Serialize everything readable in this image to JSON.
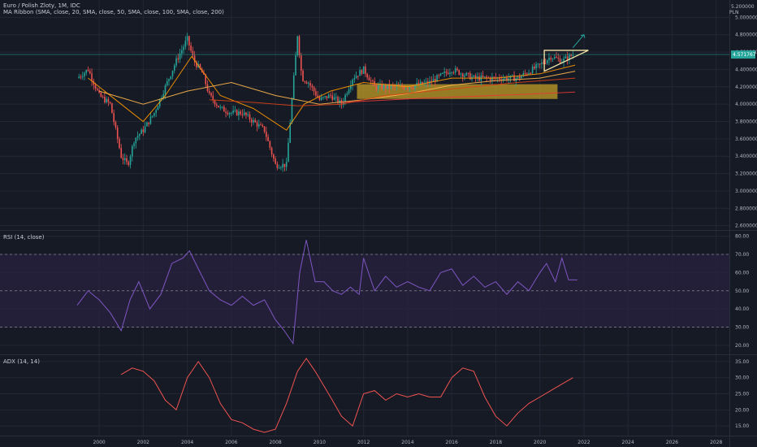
{
  "colors": {
    "background": "#161a25",
    "grid": "#232735",
    "separator": "#2a2e39",
    "up": "#26a69a",
    "down": "#ef5350",
    "ma20": "#ff9800",
    "ma50": "#ffb74d",
    "ma100": "#d84315",
    "ma200": "#e53935",
    "rsi_line": "#7e57c2",
    "rsi_band": "#2a2240",
    "adx_line": "#ef5350",
    "price_line": "#26a69a",
    "box_fill": "#c9a227",
    "pattern": "#f6e7a6",
    "arrow": "#26a69a"
  },
  "header": {
    "title": "Euro / Polish Zloty, 1M, IDC",
    "indicator": "MA Ribbon (SMA, close, 20, SMA, close, 50, SMA, close, 100, SMA, close, 200)"
  },
  "x_axis": {
    "ticks": [
      {
        "year": 2000,
        "label": "2000"
      },
      {
        "year": 2002,
        "label": "2002"
      },
      {
        "year": 2004,
        "label": "2004"
      },
      {
        "year": 2006,
        "label": "2006"
      },
      {
        "year": 2008,
        "label": "2008"
      },
      {
        "year": 2010,
        "label": "2010"
      },
      {
        "year": 2012,
        "label": "2012"
      },
      {
        "year": 2014,
        "label": "2014"
      },
      {
        "year": 2016,
        "label": "2016"
      },
      {
        "year": 2018,
        "label": "2018"
      },
      {
        "year": 2020,
        "label": "2020"
      },
      {
        "year": 2022,
        "label": "2022"
      },
      {
        "year": 2024,
        "label": "2024"
      },
      {
        "year": 2026,
        "label": "2026"
      },
      {
        "year": 2028,
        "label": "2028"
      }
    ],
    "range": [
      1995.5,
      2028.6
    ]
  },
  "price_axis": {
    "unit": "PLN",
    "ticks": [
      {
        "v": 5.0,
        "label": "5.000000"
      },
      {
        "v": 4.8,
        "label": "4.800000"
      },
      {
        "v": 4.6,
        "label": "4.600000"
      },
      {
        "v": 4.4,
        "label": "4.400000"
      },
      {
        "v": 4.2,
        "label": "4.200000"
      },
      {
        "v": 4.0,
        "label": "4.000000"
      },
      {
        "v": 3.8,
        "label": "3.800000"
      },
      {
        "v": 3.6,
        "label": "3.600000"
      },
      {
        "v": 3.4,
        "label": "3.400000"
      },
      {
        "v": 3.2,
        "label": "3.200000"
      },
      {
        "v": 3.0,
        "label": "3.000000"
      },
      {
        "v": 2.8,
        "label": "2.800000"
      },
      {
        "v": 2.6,
        "label": "2.600000"
      }
    ],
    "top_label": "5.200000",
    "current_price": 4.5717,
    "current_label": "4.571767"
  },
  "rsi_axis": {
    "ticks": [
      {
        "v": 80,
        "label": "80.00"
      },
      {
        "v": 70,
        "label": "70.00"
      },
      {
        "v": 60,
        "label": "60.00"
      },
      {
        "v": 50,
        "label": "50.00"
      },
      {
        "v": 40,
        "label": "40.00"
      },
      {
        "v": 30,
        "label": "30.00"
      },
      {
        "v": 20,
        "label": "20.00"
      }
    ],
    "title": "RSI (14, close)",
    "levels": [
      70,
      50,
      30
    ]
  },
  "adx_axis": {
    "ticks": [
      {
        "v": 35,
        "label": "35.00"
      },
      {
        "v": 30,
        "label": "30.00"
      },
      {
        "v": 25,
        "label": "25.00"
      },
      {
        "v": 20,
        "label": "20.00"
      },
      {
        "v": 15,
        "label": "15.00"
      }
    ],
    "title": "ADX (14, 14)"
  },
  "chart_data": [
    {
      "type": "line",
      "title": "Euro / Polish Zloty, 1M, IDC",
      "ylabel": "PLN",
      "ylim": [
        2.55,
        5.2
      ],
      "xlim": [
        1995.5,
        2028.6
      ],
      "series": [
        {
          "name": "Euro / Polish Zloty",
          "style": "monthly candles",
          "x": [
            1999.0,
            1999.5,
            2000.0,
            2000.5,
            2001.0,
            2001.3,
            2001.6,
            2002.0,
            2002.5,
            2003.0,
            2003.5,
            2004.0,
            2004.3,
            2004.7,
            2005.0,
            2005.5,
            2006.0,
            2006.5,
            2007.0,
            2007.5,
            2008.0,
            2008.5,
            2009.0,
            2009.2,
            2009.5,
            2010.0,
            2010.5,
            2011.0,
            2011.5,
            2012.0,
            2012.5,
            2013.0,
            2014.0,
            2015.0,
            2016.0,
            2017.0,
            2018.0,
            2019.0,
            2020.0,
            2020.5,
            2021.0,
            2021.5
          ],
          "values": [
            4.3,
            4.4,
            4.1,
            4.0,
            3.4,
            3.3,
            3.6,
            3.7,
            3.9,
            4.2,
            4.5,
            4.75,
            4.5,
            4.35,
            4.1,
            3.95,
            3.9,
            3.9,
            3.8,
            3.7,
            3.3,
            3.3,
            4.8,
            4.3,
            4.25,
            4.05,
            4.1,
            4.0,
            4.3,
            4.4,
            4.2,
            4.2,
            4.2,
            4.25,
            4.4,
            4.3,
            4.3,
            4.3,
            4.45,
            4.55,
            4.5,
            4.57
          ]
        },
        {
          "name": "SMA 20",
          "x": [
            1999.5,
            2001.0,
            2002.0,
            2003.0,
            2004.2,
            2005.5,
            2007.0,
            2008.5,
            2009.3,
            2010.5,
            2012.0,
            2014.0,
            2016.0,
            2018.0,
            2020.0,
            2021.6
          ],
          "values": [
            4.3,
            4.0,
            3.8,
            4.1,
            4.55,
            4.1,
            3.95,
            3.7,
            4.0,
            4.15,
            4.25,
            4.2,
            4.3,
            4.3,
            4.35,
            4.45
          ]
        },
        {
          "name": "SMA 50",
          "x": [
            2000.0,
            2002.0,
            2004.0,
            2006.0,
            2008.0,
            2010.0,
            2012.0,
            2014.0,
            2016.0,
            2018.0,
            2020.0,
            2021.6
          ],
          "values": [
            4.15,
            4.0,
            4.15,
            4.25,
            4.1,
            4.0,
            4.05,
            4.12,
            4.22,
            4.27,
            4.3,
            4.38
          ]
        },
        {
          "name": "SMA 100",
          "x": [
            2005.0,
            2007.0,
            2009.0,
            2011.0,
            2013.0,
            2015.0,
            2017.0,
            2019.0,
            2021.6
          ],
          "values": [
            4.05,
            4.02,
            3.98,
            4.0,
            4.1,
            4.15,
            4.2,
            4.25,
            4.3
          ]
        },
        {
          "name": "SMA 200",
          "x": [
            2011.0,
            2014.0,
            2017.0,
            2020.0,
            2021.6
          ],
          "values": [
            4.02,
            4.06,
            4.09,
            4.12,
            4.14
          ]
        }
      ],
      "annotations": {
        "box": {
          "x": [
            2011.7,
            2020.8
          ],
          "y": [
            4.06,
            4.23
          ]
        },
        "triangle": [
          [
            2020.2,
            4.62
          ],
          [
            2022.2,
            4.62
          ],
          [
            2020.2,
            4.38
          ]
        ],
        "arrow": {
          "from": [
            2021.5,
            4.65
          ],
          "to": [
            2022.0,
            4.8
          ]
        }
      }
    },
    {
      "type": "line",
      "title": "RSI (14, close)",
      "ylim": [
        15,
        83
      ],
      "series": [
        {
          "name": "RSI",
          "x": [
            1999.0,
            1999.5,
            2000.0,
            2000.5,
            2001.0,
            2001.4,
            2001.8,
            2002.3,
            2002.8,
            2003.3,
            2003.8,
            2004.1,
            2004.5,
            2005.0,
            2005.5,
            2006.0,
            2006.5,
            2007.0,
            2007.5,
            2008.0,
            2008.4,
            2008.8,
            2009.1,
            2009.4,
            2009.8,
            2010.2,
            2010.6,
            2011.0,
            2011.4,
            2011.8,
            2012.0,
            2012.5,
            2013.0,
            2013.5,
            2014.0,
            2014.5,
            2015.0,
            2015.5,
            2016.0,
            2016.5,
            2017.0,
            2017.5,
            2018.0,
            2018.5,
            2019.0,
            2019.5,
            2020.0,
            2020.3,
            2020.7,
            2021.0,
            2021.3,
            2021.7
          ],
          "values": [
            42,
            50,
            45,
            38,
            28,
            45,
            55,
            40,
            48,
            65,
            68,
            72,
            62,
            50,
            45,
            42,
            47,
            42,
            45,
            34,
            28,
            21,
            60,
            78,
            55,
            55,
            50,
            48,
            52,
            48,
            68,
            50,
            58,
            52,
            55,
            52,
            50,
            60,
            62,
            53,
            58,
            52,
            55,
            48,
            55,
            50,
            60,
            65,
            55,
            68,
            56,
            56
          ]
        }
      ]
    },
    {
      "type": "line",
      "title": "ADX (14, 14)",
      "ylim": [
        12,
        37
      ],
      "series": [
        {
          "name": "ADX",
          "x": [
            2001.0,
            2001.5,
            2002.0,
            2002.5,
            2003.0,
            2003.5,
            2004.0,
            2004.5,
            2005.0,
            2005.5,
            2006.0,
            2006.5,
            2007.0,
            2007.5,
            2008.0,
            2008.5,
            2009.0,
            2009.4,
            2009.8,
            2010.5,
            2011.0,
            2011.5,
            2012.0,
            2012.5,
            2013.0,
            2013.5,
            2014.0,
            2014.5,
            2015.0,
            2015.5,
            2016.0,
            2016.5,
            2017.0,
            2017.5,
            2018.0,
            2018.5,
            2019.0,
            2019.5,
            2020.0,
            2020.5,
            2021.0,
            2021.5
          ],
          "values": [
            31,
            33,
            32,
            29,
            23,
            20,
            30,
            35,
            30,
            22,
            17,
            16,
            14,
            13,
            14,
            22,
            32,
            36,
            32,
            24,
            18,
            15,
            25,
            26,
            23,
            25,
            24,
            25,
            24,
            24,
            30,
            33,
            32,
            24,
            18,
            15,
            19,
            22,
            24,
            26,
            28,
            30
          ]
        }
      ]
    }
  ]
}
